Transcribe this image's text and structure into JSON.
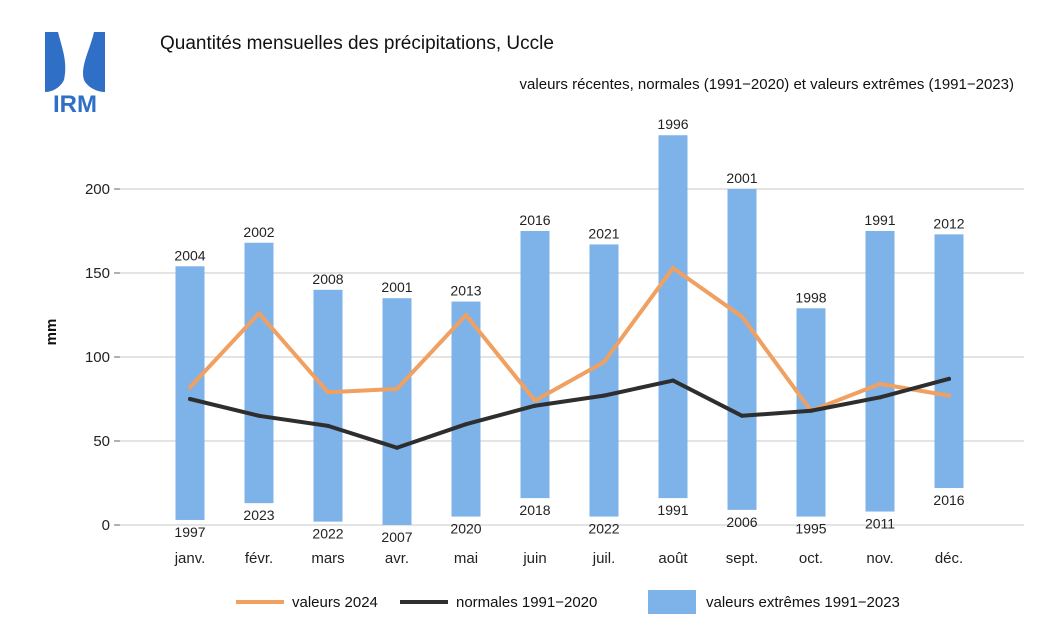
{
  "header": {
    "logo_text": "IRM",
    "title": "Quantités mensuelles des précipitations, Uccle",
    "subtitle": "valeurs récentes, normales (1991−2020) et valeurs extrêmes (1991−2023)"
  },
  "colors": {
    "bars": "#7EB3EA",
    "line_2024": "#F0A060",
    "line_normals": "#2E2E2E",
    "grid": "#C8C8C8",
    "logo": "#2F6FC6"
  },
  "chart_data": {
    "type": "bar",
    "ylabel": "mm",
    "ylim": [
      0,
      240
    ],
    "yticks": [
      0,
      50,
      100,
      150,
      200
    ],
    "grid": true,
    "legend_position": "bottom",
    "categories": [
      "janv.",
      "févr.",
      "mars",
      "avr.",
      "mai",
      "juin",
      "juil.",
      "août",
      "sept.",
      "oct.",
      "nov.",
      "déc."
    ],
    "extremes": {
      "name": "valeurs extrêmes 1991−2023",
      "max": [
        154,
        168,
        140,
        135,
        133,
        175,
        167,
        232,
        200,
        129,
        175,
        173
      ],
      "max_year": [
        "2004",
        "2002",
        "2008",
        "2001",
        "2013",
        "2016",
        "2021",
        "1996",
        "2001",
        "1998",
        "1991",
        "2012"
      ],
      "min": [
        3,
        13,
        2,
        0,
        5,
        16,
        5,
        16,
        9,
        5,
        8,
        22
      ],
      "min_year": [
        "1997",
        "2023",
        "2022",
        "2007",
        "2020",
        "2018",
        "2022",
        "1991",
        "2006",
        "1995",
        "2011",
        "2016"
      ]
    },
    "series": [
      {
        "name": "valeurs 2024",
        "values": [
          82,
          126,
          79,
          81,
          125,
          74,
          97,
          153,
          124,
          68,
          84,
          77
        ]
      },
      {
        "name": "normales 1991−2020",
        "values": [
          75,
          65,
          59,
          46,
          60,
          71,
          77,
          86,
          65,
          68,
          76,
          87
        ]
      }
    ]
  }
}
